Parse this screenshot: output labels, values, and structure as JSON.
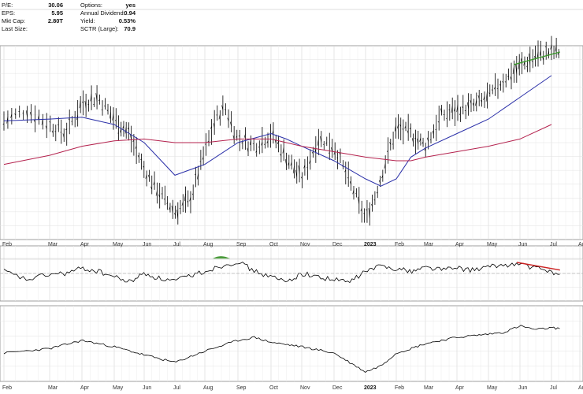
{
  "stats": {
    "left": [
      {
        "label": "P/E:",
        "value": "30.06"
      },
      {
        "label": "EPS:",
        "value": "5.95"
      },
      {
        "label": "Mkt Cap:",
        "value": "2.80T"
      },
      {
        "label": "Last Size:",
        "value": ""
      }
    ],
    "right": [
      {
        "label": "Options:",
        "value": "yes"
      },
      {
        "label": "Annual Dividend:",
        "value": "0.94"
      },
      {
        "label": "Yield:",
        "value": "0.53%"
      },
      {
        "label": "SCTR (Large):",
        "value": "70.9"
      }
    ]
  },
  "chart_data": {
    "type": "line",
    "title": "",
    "x_tick_labels": [
      "Feb",
      "Mar",
      "Apr",
      "May",
      "Jun",
      "Jul",
      "Aug",
      "Sep",
      "Oct",
      "Nov",
      "Dec",
      "2023",
      "Feb",
      "Mar",
      "Apr",
      "May",
      "Jun",
      "Jul",
      "Aug"
    ],
    "panels": [
      {
        "name": "price",
        "kind": "ohlc",
        "grid": true,
        "series": [
          {
            "kind": "price-bars",
            "color": "#000000",
            "points": [
              [
                0,
                0.62
              ],
              [
                0.5,
                0.68
              ],
              [
                1,
                0.6
              ],
              [
                1.5,
                0.55
              ],
              [
                2,
                0.72
              ],
              [
                2.5,
                0.75
              ],
              [
                3,
                0.63
              ],
              [
                3.5,
                0.55
              ],
              [
                4,
                0.35
              ],
              [
                4.5,
                0.22
              ],
              [
                5,
                0.12
              ],
              [
                5.5,
                0.18
              ],
              [
                6,
                0.45
              ],
              [
                6.3,
                0.62
              ],
              [
                6.6,
                0.7
              ],
              [
                7,
                0.52
              ],
              [
                7.5,
                0.48
              ],
              [
                8,
                0.55
              ],
              [
                8.5,
                0.42
              ],
              [
                9,
                0.3
              ],
              [
                9.5,
                0.52
              ],
              [
                10,
                0.48
              ],
              [
                10.5,
                0.28
              ],
              [
                11,
                0.08
              ],
              [
                11.3,
                0.2
              ],
              [
                11.7,
                0.42
              ],
              [
                12,
                0.58
              ],
              [
                12.5,
                0.55
              ],
              [
                13,
                0.48
              ],
              [
                13.5,
                0.65
              ],
              [
                14,
                0.68
              ],
              [
                14.5,
                0.7
              ],
              [
                15,
                0.75
              ],
              [
                15.5,
                0.85
              ],
              [
                16,
                0.92
              ],
              [
                16.5,
                0.98
              ],
              [
                17,
                1.0
              ],
              [
                17.3,
                1.0
              ]
            ]
          },
          {
            "kind": "ma-50",
            "color": "#2a2fa8",
            "points": [
              [
                0,
                0.62
              ],
              [
                1,
                0.63
              ],
              [
                2,
                0.64
              ],
              [
                3,
                0.6
              ],
              [
                4,
                0.5
              ],
              [
                5,
                0.32
              ],
              [
                6,
                0.38
              ],
              [
                7,
                0.5
              ],
              [
                8,
                0.55
              ],
              [
                8.5,
                0.52
              ],
              [
                9,
                0.48
              ],
              [
                10,
                0.4
              ],
              [
                11,
                0.3
              ],
              [
                11.5,
                0.26
              ],
              [
                12,
                0.3
              ],
              [
                12.5,
                0.42
              ],
              [
                13,
                0.47
              ],
              [
                14,
                0.55
              ],
              [
                15,
                0.63
              ],
              [
                16,
                0.75
              ],
              [
                17,
                0.87
              ]
            ]
          },
          {
            "kind": "ma-200",
            "color": "#b4224e",
            "points": [
              [
                0,
                0.38
              ],
              [
                1,
                0.43
              ],
              [
                2,
                0.48
              ],
              [
                3,
                0.51
              ],
              [
                4,
                0.52
              ],
              [
                5,
                0.5
              ],
              [
                6,
                0.5
              ],
              [
                7,
                0.52
              ],
              [
                8,
                0.52
              ],
              [
                9,
                0.48
              ],
              [
                10,
                0.45
              ],
              [
                11,
                0.42
              ],
              [
                12,
                0.4
              ],
              [
                12.5,
                0.4
              ],
              [
                13,
                0.42
              ],
              [
                14,
                0.45
              ],
              [
                15,
                0.48
              ],
              [
                16,
                0.52
              ],
              [
                17,
                0.6
              ]
            ]
          },
          {
            "kind": "trendline",
            "color": "#3a9a2a",
            "points": [
              [
                15.8,
                0.93
              ],
              [
                17.3,
                1.0
              ]
            ]
          }
        ]
      },
      {
        "name": "oscillator",
        "grid": true,
        "series": [
          {
            "kind": "oscillator",
            "color": "#000000",
            "points": [
              [
                0,
                0.55
              ],
              [
                0.5,
                0.35
              ],
              [
                1,
                0.48
              ],
              [
                1.5,
                0.5
              ],
              [
                2,
                0.62
              ],
              [
                2.5,
                0.55
              ],
              [
                3,
                0.42
              ],
              [
                3.5,
                0.3
              ],
              [
                4,
                0.5
              ],
              [
                4.5,
                0.38
              ],
              [
                5,
                0.32
              ],
              [
                5.5,
                0.45
              ],
              [
                6,
                0.55
              ],
              [
                6.5,
                0.68
              ],
              [
                7,
                0.78
              ],
              [
                7.5,
                0.55
              ],
              [
                8,
                0.42
              ],
              [
                8.5,
                0.3
              ],
              [
                9,
                0.5
              ],
              [
                9.5,
                0.42
              ],
              [
                10,
                0.35
              ],
              [
                10.5,
                0.3
              ],
              [
                11,
                0.55
              ],
              [
                11.5,
                0.68
              ],
              [
                12,
                0.62
              ],
              [
                12.5,
                0.55
              ],
              [
                13,
                0.65
              ],
              [
                13.5,
                0.6
              ],
              [
                14,
                0.62
              ],
              [
                14.5,
                0.58
              ],
              [
                15,
                0.65
              ],
              [
                15.5,
                0.7
              ],
              [
                16,
                0.72
              ],
              [
                16.5,
                0.62
              ],
              [
                17,
                0.55
              ],
              [
                17.3,
                0.45
              ]
            ]
          },
          {
            "kind": "trendline",
            "color": "#cc2222",
            "points": [
              [
                15.9,
                0.76
              ],
              [
                17.3,
                0.58
              ]
            ]
          }
        ]
      },
      {
        "name": "cumulative",
        "grid": true,
        "series": [
          {
            "kind": "line",
            "color": "#000000",
            "points": [
              [
                0,
                0.35
              ],
              [
                1,
                0.42
              ],
              [
                2,
                0.55
              ],
              [
                3,
                0.45
              ],
              [
                4,
                0.32
              ],
              [
                5,
                0.2
              ],
              [
                6,
                0.38
              ],
              [
                7,
                0.55
              ],
              [
                7.5,
                0.6
              ],
              [
                8,
                0.52
              ],
              [
                9,
                0.45
              ],
              [
                10,
                0.35
              ],
              [
                10.5,
                0.2
              ],
              [
                11,
                0.05
              ],
              [
                11.5,
                0.15
              ],
              [
                12,
                0.35
              ],
              [
                12.5,
                0.42
              ],
              [
                13,
                0.5
              ],
              [
                14,
                0.6
              ],
              [
                15,
                0.65
              ],
              [
                15.5,
                0.68
              ],
              [
                16,
                0.78
              ],
              [
                16.5,
                0.72
              ],
              [
                17,
                0.75
              ],
              [
                17.3,
                0.74
              ]
            ]
          }
        ]
      }
    ]
  }
}
